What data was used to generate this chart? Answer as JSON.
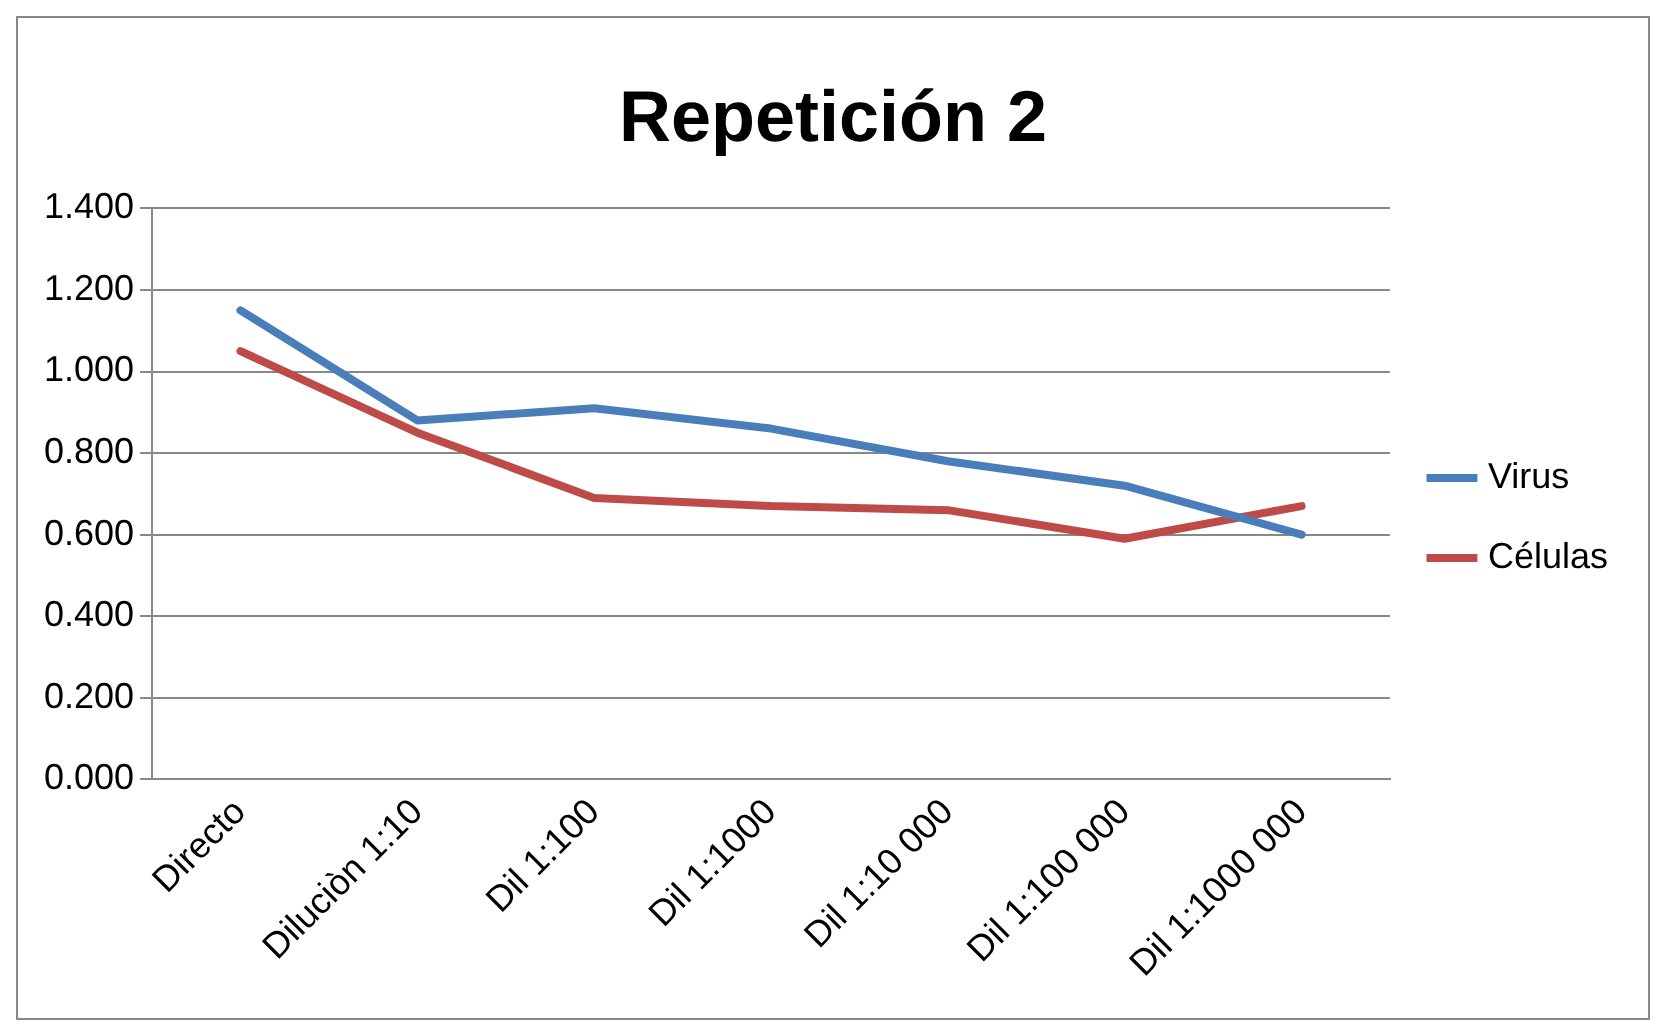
{
  "chart_data": {
    "type": "line",
    "title": "Repetición 2",
    "categories": [
      "Directo",
      "Diluciòn 1:10",
      "Dil 1:100",
      "Dil 1:1000",
      "Dil 1:10 000",
      "Dil 1:100 000",
      "Dil 1:1000 000"
    ],
    "series": [
      {
        "name": "Virus",
        "color": "#4a7ebb",
        "values": [
          1.15,
          0.88,
          0.91,
          0.86,
          0.78,
          0.72,
          0.6
        ]
      },
      {
        "name": "Células",
        "color": "#be4b48",
        "values": [
          1.05,
          0.85,
          0.69,
          0.67,
          0.66,
          0.59,
          0.67
        ]
      }
    ],
    "ylim": [
      0,
      1.4
    ],
    "yticks": [
      {
        "value": 0,
        "label": "0.000"
      },
      {
        "value": 0.2,
        "label": "0.200"
      },
      {
        "value": 0.4,
        "label": "0.400"
      },
      {
        "value": 0.6,
        "label": "0.600"
      },
      {
        "value": 0.8,
        "label": "0.800"
      },
      {
        "value": 1,
        "label": "1.000"
      },
      {
        "value": 1.2,
        "label": "1.200"
      },
      {
        "value": 1.4,
        "label": "1.400"
      }
    ],
    "grid": "y",
    "legend": "right",
    "marker": "none",
    "line_style": "solid"
  }
}
